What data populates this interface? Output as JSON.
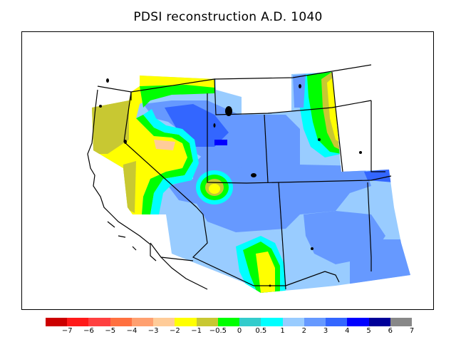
{
  "title": "PDSI reconstruction A.D. 1040",
  "colorbar": {
    "colors": [
      "#cc0000",
      "#ff1a1a",
      "#ff4040",
      "#ff7040",
      "#ffa070",
      "#ffcc99",
      "#ffff00",
      "#c8c832",
      "#00ff00",
      "#33cccc",
      "#00ffff",
      "#99ccff",
      "#6699ff",
      "#3366ff",
      "#0000ff",
      "#000099",
      "#888888"
    ],
    "labels": [
      "−7",
      "−6",
      "−5",
      "−4",
      "−3",
      "−2",
      "−1",
      "−0.5",
      "0",
      "0.5",
      "1",
      "2",
      "3",
      "4",
      "5",
      "6",
      "7"
    ]
  }
}
